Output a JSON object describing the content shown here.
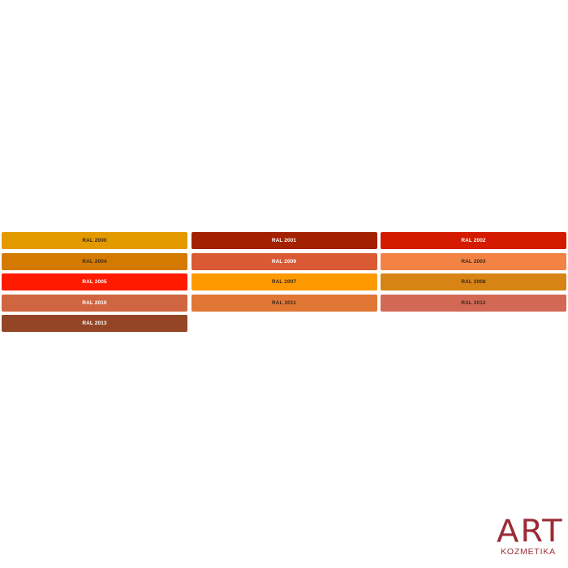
{
  "swatches": [
    {
      "label": "RAL 2000",
      "color": "#e39a00",
      "text": "dark"
    },
    {
      "label": "RAL 2001",
      "color": "#a32100",
      "text": "light"
    },
    {
      "label": "RAL 2002",
      "color": "#d41b00",
      "text": "light"
    },
    {
      "label": "RAL 2004",
      "color": "#d57a00",
      "text": "dark"
    },
    {
      "label": "RAL 2009",
      "color": "#d95a34",
      "text": "light"
    },
    {
      "label": "RAL 2003",
      "color": "#f38345",
      "text": "dark"
    },
    {
      "label": "RAL 2005",
      "color": "#ff1a00",
      "text": "light"
    },
    {
      "label": "RAL 2007",
      "color": "#ff9900",
      "text": "dark"
    },
    {
      "label": "RAL 2008",
      "color": "#d78414",
      "text": "dark"
    },
    {
      "label": "RAL 2010",
      "color": "#cf6641",
      "text": "light"
    },
    {
      "label": "RAL 2011",
      "color": "#e07735",
      "text": "dark"
    },
    {
      "label": "RAL 2012",
      "color": "#d36855",
      "text": "dark"
    },
    {
      "label": "RAL 2013",
      "color": "#944525",
      "text": "light"
    }
  ],
  "logo": {
    "main": "ART",
    "sub": "KOZMETIKA",
    "color": "#9b2b35"
  }
}
